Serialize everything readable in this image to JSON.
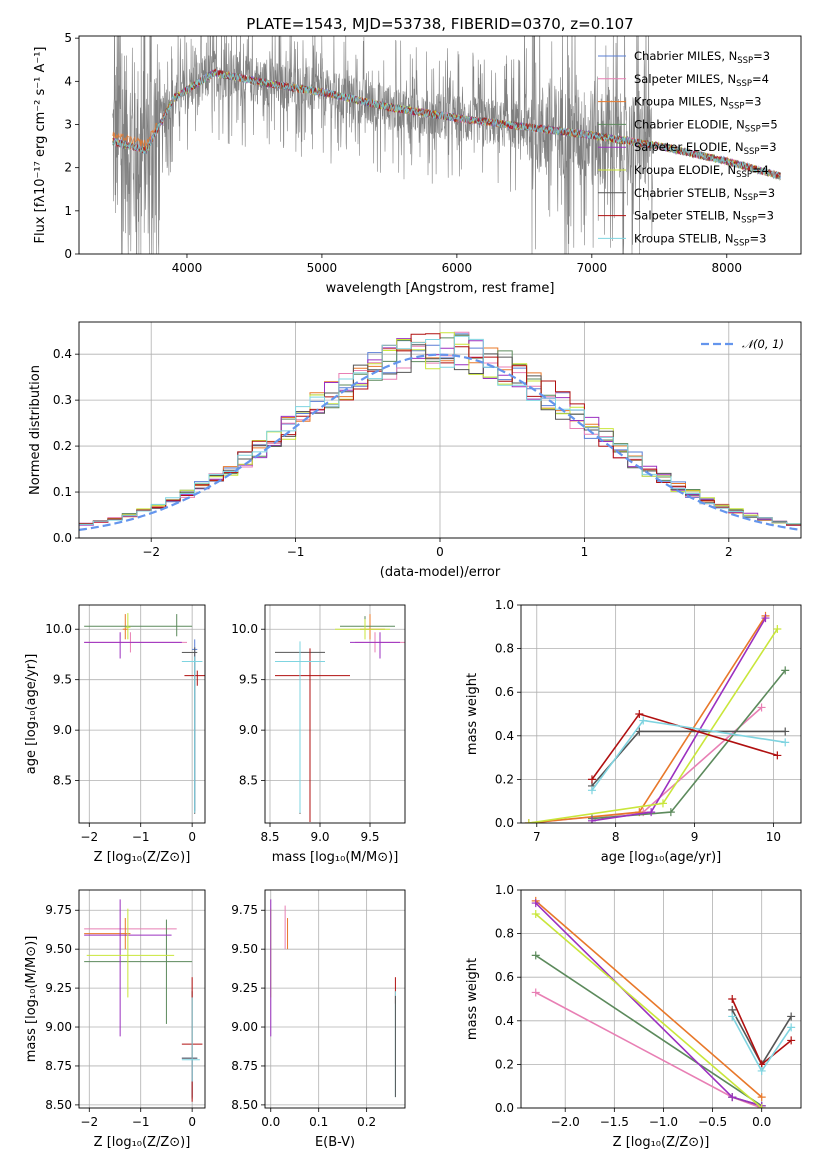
{
  "title": "PLATE=1543, MJD=53738, FIBERID=0370, z=0.107",
  "colors": {
    "chabrier_miles": "#5a7fd6",
    "salpeter_miles": "#e87fb4",
    "kroupa_miles": "#e8782a",
    "chabrier_elodie": "#5c8a5c",
    "salpeter_elodie": "#9b30c0",
    "kroupa_elodie": "#c9e63a",
    "chabrier_stelib": "#555555",
    "salpeter_stelib": "#b01010",
    "kroupa_stelib": "#7fd4e0",
    "data": "#808080",
    "normal": "#6495ed"
  },
  "legend": [
    {
      "key": "chabrier_miles",
      "base": "Chabrier MILES, N",
      "sub": "SSP",
      "eq": "=3"
    },
    {
      "key": "salpeter_miles",
      "base": "Salpeter MILES, N",
      "sub": "SSP",
      "eq": "=4"
    },
    {
      "key": "kroupa_miles",
      "base": "Kroupa MILES, N",
      "sub": "SSP",
      "eq": "=3"
    },
    {
      "key": "chabrier_elodie",
      "base": "Chabrier ELODIE, N",
      "sub": "SSP",
      "eq": "=5"
    },
    {
      "key": "salpeter_elodie",
      "base": "Salpeter ELODIE, N",
      "sub": "SSP",
      "eq": "=3"
    },
    {
      "key": "kroupa_elodie",
      "base": "Kroupa ELODIE, N",
      "sub": "SSP",
      "eq": "=4"
    },
    {
      "key": "chabrier_stelib",
      "base": "Chabrier STELIB, N",
      "sub": "SSP",
      "eq": "=3"
    },
    {
      "key": "salpeter_stelib",
      "base": "Salpeter STELIB, N",
      "sub": "SSP",
      "eq": "=3"
    },
    {
      "key": "kroupa_stelib",
      "base": "Kroupa STELIB, N",
      "sub": "SSP",
      "eq": "=3"
    }
  ],
  "chart_data": [
    {
      "id": "spectrum",
      "type": "line",
      "xlabel": "wavelength [Angstrom, rest frame]",
      "ylabel": "Flux [fλ10⁻¹⁷ erg cm⁻² s⁻¹ A⁻¹]",
      "xlim": [
        3200,
        8550
      ],
      "ylim": [
        0,
        5.05
      ],
      "xticks": [
        4000,
        5000,
        6000,
        7000,
        8000
      ],
      "yticks": [
        0,
        1,
        2,
        3,
        4,
        5
      ],
      "model_continuum": {
        "x": [
          3450,
          3700,
          3900,
          4200,
          4600,
          5000,
          5500,
          6000,
          6500,
          7000,
          7500,
          8000,
          8400
        ],
        "y": [
          2.6,
          2.4,
          3.6,
          4.2,
          3.95,
          3.75,
          3.4,
          3.15,
          2.95,
          2.75,
          2.5,
          2.15,
          1.8
        ]
      },
      "data_range": [
        3450,
        7450
      ]
    },
    {
      "id": "residuals",
      "type": "histogram",
      "xlabel": "(data-model)/error",
      "ylabel": "Normed distribution",
      "xlim": [
        -2.5,
        2.5
      ],
      "ylim": [
        0,
        0.47
      ],
      "xticks": [
        -2,
        -1,
        0,
        1,
        2
      ],
      "yticks": [
        0.0,
        0.1,
        0.2,
        0.3,
        0.4
      ],
      "legend_label": "𝒩(0, 1)",
      "reference": {
        "distribution": "normal",
        "mean": 0,
        "sigma": 1
      }
    },
    {
      "id": "age_vs_Z",
      "type": "errorbar",
      "xlabel": "Z [log₁₀(Z/Z⊙)]",
      "ylabel": "age  [log₁₀(age/yr)]",
      "xlim": [
        -2.2,
        0.25
      ],
      "ylim": [
        8.08,
        10.24
      ],
      "xticks": [
        -2,
        -1,
        0
      ],
      "yticks": [
        8.5,
        9.0,
        9.5,
        10.0
      ],
      "points": [
        {
          "s": "chabrier_miles",
          "x": 0.05,
          "y": 9.8,
          "xerr": [
            0.05,
            0.05
          ],
          "yerr": [
            1.6,
            0.1
          ]
        },
        {
          "s": "salpeter_miles",
          "x": -1.2,
          "y": 9.87,
          "xerr": [
            0.9,
            1.1
          ],
          "yerr": [
            0.1,
            0.1
          ]
        },
        {
          "s": "kroupa_miles",
          "x": -1.3,
          "y": 10.0,
          "xerr": [
            0.05,
            0.05
          ],
          "yerr": [
            0.1,
            0.15
          ]
        },
        {
          "s": "chabrier_elodie",
          "x": -0.3,
          "y": 10.03,
          "xerr": [
            1.8,
            0.3
          ],
          "yerr": [
            0.1,
            0.12
          ]
        },
        {
          "s": "salpeter_elodie",
          "x": -1.4,
          "y": 9.87,
          "xerr": [
            0.7,
            1.2
          ],
          "yerr": [
            0.16,
            0.1
          ]
        },
        {
          "s": "kroupa_elodie",
          "x": -1.25,
          "y": 10.02,
          "xerr": [
            0.05,
            0.05
          ],
          "yerr": [
            0.12,
            0.14
          ]
        },
        {
          "s": "chabrier_stelib",
          "x": 0.05,
          "y": 9.77,
          "xerr": [
            0.25,
            0.05
          ],
          "yerr": [
            1.6,
            0.05
          ]
        },
        {
          "s": "salpeter_stelib",
          "x": 0.1,
          "y": 9.54,
          "xerr": [
            0.25,
            0.15
          ],
          "yerr": [
            0.1,
            0.05
          ]
        },
        {
          "s": "kroupa_stelib",
          "x": 0.05,
          "y": 9.68,
          "xerr": [
            0.25,
            0.15
          ],
          "yerr": [
            1.5,
            0.05
          ]
        }
      ]
    },
    {
      "id": "age_vs_mass",
      "type": "errorbar",
      "xlabel": "mass [log₁₀(M/M⊙)]",
      "ylabel": "",
      "xlim": [
        8.45,
        9.85
      ],
      "ylim": [
        8.08,
        10.24
      ],
      "xticks": [
        8.5,
        9.0,
        9.5
      ],
      "yticks": [
        8.5,
        9.0,
        9.5,
        10.0
      ],
      "points": [
        {
          "s": "chabrier_miles",
          "x": 8.8,
          "y": 9.8,
          "xerr": [
            0.0,
            0.0
          ],
          "yerr": [
            1.0,
            0.05
          ]
        },
        {
          "s": "salpeter_miles",
          "x": 9.55,
          "y": 9.87,
          "xerr": [
            0.2,
            0.3
          ],
          "yerr": [
            0.1,
            0.1
          ]
        },
        {
          "s": "kroupa_miles",
          "x": 9.5,
          "y": 10.0,
          "xerr": [
            0.1,
            0.15
          ],
          "yerr": [
            0.1,
            0.15
          ]
        },
        {
          "s": "chabrier_elodie",
          "x": 9.45,
          "y": 10.03,
          "xerr": [
            0.25,
            0.3
          ],
          "yerr": [
            0.1,
            0.1
          ]
        },
        {
          "s": "salpeter_elodie",
          "x": 9.6,
          "y": 9.87,
          "xerr": [
            0.3,
            0.2
          ],
          "yerr": [
            0.16,
            0.1
          ]
        },
        {
          "s": "kroupa_elodie",
          "x": 9.45,
          "y": 10.0,
          "xerr": [
            0.3,
            0.25
          ],
          "yerr": [
            0.1,
            0.1
          ]
        },
        {
          "s": "chabrier_stelib",
          "x": 8.8,
          "y": 9.77,
          "xerr": [
            0.25,
            0.25
          ],
          "yerr": [
            1.6,
            0.05
          ]
        },
        {
          "s": "salpeter_stelib",
          "x": 8.9,
          "y": 9.54,
          "xerr": [
            0.35,
            0.4
          ],
          "yerr": [
            1.45,
            0.27
          ]
        },
        {
          "s": "kroupa_stelib",
          "x": 8.8,
          "y": 9.68,
          "xerr": [
            0.25,
            0.25
          ],
          "yerr": [
            1.5,
            0.2
          ]
        }
      ]
    },
    {
      "id": "mw_vs_age",
      "type": "line",
      "xlabel": "age  [log₁₀(age/yr)]",
      "ylabel": "mass weight",
      "xlim": [
        6.8,
        10.35
      ],
      "ylim": [
        0,
        1.0
      ],
      "xticks": [
        7,
        8,
        9,
        10
      ],
      "yticks": [
        0.0,
        0.2,
        0.4,
        0.6,
        0.8,
        1.0
      ],
      "series": [
        {
          "s": "salpeter_miles",
          "x": [
            6.9,
            8.35,
            9.85
          ],
          "y": [
            0.0,
            0.05,
            0.53
          ]
        },
        {
          "s": "kroupa_miles",
          "x": [
            6.9,
            8.3,
            9.9
          ],
          "y": [
            0.0,
            0.05,
            0.95
          ]
        },
        {
          "s": "chabrier_elodie",
          "x": [
            7.7,
            8.7,
            10.15
          ],
          "y": [
            0.02,
            0.05,
            0.7
          ]
        },
        {
          "s": "salpeter_elodie",
          "x": [
            7.7,
            8.45,
            9.9
          ],
          "y": [
            0.01,
            0.05,
            0.94
          ]
        },
        {
          "s": "kroupa_elodie",
          "x": [
            6.9,
            8.6,
            10.05
          ],
          "y": [
            0.0,
            0.09,
            0.89
          ]
        },
        {
          "s": "chabrier_stelib",
          "x": [
            7.7,
            8.3,
            10.15
          ],
          "y": [
            0.17,
            0.42,
            0.42
          ]
        },
        {
          "s": "salpeter_stelib",
          "x": [
            7.7,
            8.3,
            10.05
          ],
          "y": [
            0.2,
            0.5,
            0.31
          ]
        },
        {
          "s": "kroupa_stelib",
          "x": [
            7.7,
            8.35,
            10.15
          ],
          "y": [
            0.15,
            0.47,
            0.37
          ]
        }
      ]
    },
    {
      "id": "mass_vs_Z",
      "type": "errorbar",
      "xlabel": "Z [log₁₀(Z/Z⊙)]",
      "ylabel": "mass [log₁₀(M/M⊙)]",
      "xlim": [
        -2.2,
        0.25
      ],
      "ylim": [
        8.48,
        9.88
      ],
      "xticks": [
        -2,
        -1,
        0
      ],
      "yticks": [
        8.5,
        8.75,
        9.0,
        9.25,
        9.5,
        9.75
      ],
      "points": [
        {
          "s": "chabrier_miles",
          "x": 0.0,
          "y": 8.8,
          "xerr": [
            0.2,
            0.1
          ],
          "yerr": [
            0.25,
            0.0
          ]
        },
        {
          "s": "salpeter_miles",
          "x": -1.2,
          "y": 9.63,
          "xerr": [
            0.9,
            0.9
          ],
          "yerr": [
            0.0,
            0.0
          ]
        },
        {
          "s": "kroupa_miles",
          "x": -1.3,
          "y": 9.6,
          "xerr": [
            0.8,
            0.1
          ],
          "yerr": [
            0.1,
            0.1
          ]
        },
        {
          "s": "chabrier_elodie",
          "x": -0.5,
          "y": 9.42,
          "xerr": [
            1.6,
            0.5
          ],
          "yerr": [
            0.4,
            0.27
          ]
        },
        {
          "s": "salpeter_elodie",
          "x": -1.4,
          "y": 9.59,
          "xerr": [
            0.7,
            1.0
          ],
          "yerr": [
            0.65,
            0.23
          ]
        },
        {
          "s": "kroupa_elodie",
          "x": -1.25,
          "y": 9.46,
          "xerr": [
            0.8,
            0.9
          ],
          "yerr": [
            0.27,
            0.3
          ]
        },
        {
          "s": "chabrier_stelib",
          "x": 0.0,
          "y": 8.8,
          "xerr": [
            0.2,
            0.1
          ],
          "yerr": [
            0.26,
            0.43
          ]
        },
        {
          "s": "salpeter_stelib",
          "x": 0.0,
          "y": 8.89,
          "xerr": [
            0.2,
            0.2
          ],
          "yerr": [
            0.37,
            0.43
          ]
        },
        {
          "s": "kroupa_stelib",
          "x": 0.0,
          "y": 8.79,
          "xerr": [
            0.2,
            0.15
          ],
          "yerr": [
            0.14,
            0.4
          ]
        }
      ]
    },
    {
      "id": "mass_vs_EBV",
      "type": "errorbar",
      "xlabel": "E(B-V)",
      "ylabel": "",
      "xlim": [
        -0.012,
        0.28
      ],
      "ylim": [
        8.48,
        9.88
      ],
      "xticks": [
        0.0,
        0.1,
        0.2
      ],
      "yticks": [
        8.5,
        8.75,
        9.0,
        9.25,
        9.5,
        9.75
      ],
      "points": [
        {
          "s": "salpeter_miles",
          "x": 0.03,
          "y": 9.63,
          "xerr": [
            0,
            0
          ],
          "yerr": [
            0.13,
            0.15
          ]
        },
        {
          "s": "kroupa_miles",
          "x": 0.035,
          "y": 9.6,
          "xerr": [
            0,
            0
          ],
          "yerr": [
            0.1,
            0.1
          ]
        },
        {
          "s": "kroupa_elodie",
          "x": 0.0,
          "y": 9.46,
          "xerr": [
            0,
            0
          ],
          "yerr": [
            0.27,
            0.3
          ]
        },
        {
          "s": "salpeter_elodie",
          "x": 0.0,
          "y": 9.59,
          "xerr": [
            0,
            0
          ],
          "yerr": [
            0.65,
            0.23
          ]
        },
        {
          "s": "salpeter_stelib",
          "x": 0.26,
          "y": 9.25,
          "xerr": [
            0,
            0
          ],
          "yerr": [
            0.1,
            0.07
          ]
        },
        {
          "s": "kroupa_stelib",
          "x": 0.26,
          "y": 8.8,
          "xerr": [
            0,
            0
          ],
          "yerr": [
            0.25,
            0.43
          ]
        },
        {
          "s": "chabrier_stelib",
          "x": 0.26,
          "y": 8.8,
          "xerr": [
            0,
            0
          ],
          "yerr": [
            0.25,
            0.4
          ]
        }
      ]
    },
    {
      "id": "mw_vs_Z",
      "type": "line",
      "xlabel": "Z [log₁₀(Z/Z⊙)]",
      "ylabel": "mass weight",
      "xlim": [
        -2.45,
        0.4
      ],
      "ylim": [
        0,
        1.0
      ],
      "xticks": [
        -2.0,
        -1.5,
        -1.0,
        -0.5,
        0.0
      ],
      "yticks": [
        0.0,
        0.2,
        0.4,
        0.6,
        0.8,
        1.0
      ],
      "series": [
        {
          "s": "salpeter_miles",
          "x": [
            -2.3,
            -0.3,
            0.0
          ],
          "y": [
            0.53,
            0.05,
            0.0
          ]
        },
        {
          "s": "kroupa_miles",
          "x": [
            -2.3,
            0.0
          ],
          "y": [
            0.95,
            0.05
          ]
        },
        {
          "s": "chabrier_elodie",
          "x": [
            -2.3,
            0.0,
            -0.3
          ],
          "y": [
            0.7,
            0.01,
            0.05
          ]
        },
        {
          "s": "salpeter_elodie",
          "x": [
            -2.3,
            -0.3,
            0.0
          ],
          "y": [
            0.94,
            0.05,
            0.01
          ]
        },
        {
          "s": "kroupa_elodie",
          "x": [
            -2.3,
            0.0
          ],
          "y": [
            0.89,
            0.0
          ]
        },
        {
          "s": "chabrier_stelib",
          "x": [
            -0.3,
            0.0,
            0.3
          ],
          "y": [
            0.45,
            0.2,
            0.42
          ]
        },
        {
          "s": "salpeter_stelib",
          "x": [
            -0.3,
            0.0,
            0.3
          ],
          "y": [
            0.5,
            0.2,
            0.31
          ]
        },
        {
          "s": "kroupa_stelib",
          "x": [
            -0.3,
            0.0,
            0.3
          ],
          "y": [
            0.42,
            0.17,
            0.37
          ]
        }
      ]
    }
  ]
}
